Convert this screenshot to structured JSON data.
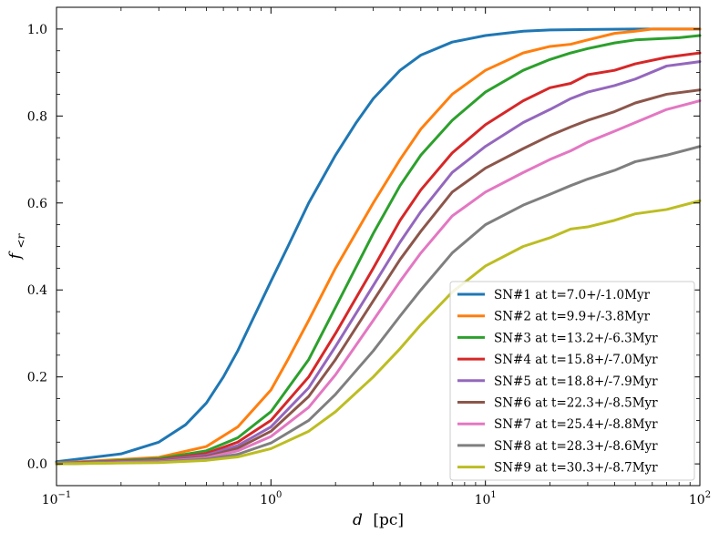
{
  "chart_data": {
    "type": "line",
    "title": "",
    "xlabel": "d [pc]",
    "xlabel_var": "d",
    "xlabel_unit": "[pc]",
    "ylabel": "f<r",
    "ylabel_var": "f",
    "ylabel_sub": "<r",
    "xscale": "log",
    "xlim": [
      0.1,
      100
    ],
    "ylim": [
      -0.05,
      1.05
    ],
    "grid": false,
    "legend_position": "lower-right",
    "x_ticks": [
      {
        "value": 0.1,
        "base": "10",
        "exp": "−1"
      },
      {
        "value": 1,
        "base": "10",
        "exp": "0"
      },
      {
        "value": 10,
        "base": "10",
        "exp": "1"
      },
      {
        "value": 100,
        "base": "10",
        "exp": "2"
      }
    ],
    "y_ticks": [
      "0.0",
      "0.2",
      "0.4",
      "0.6",
      "0.8",
      "1.0"
    ],
    "series": [
      {
        "name": "SN#1 at t=7.0+/-1.0Myr",
        "color": "#1f77b4",
        "x": [
          0.1,
          0.2,
          0.3,
          0.4,
          0.5,
          0.6,
          0.7,
          0.8,
          1.0,
          1.2,
          1.5,
          2,
          2.5,
          3,
          4,
          5,
          7,
          10,
          15,
          20,
          30,
          50,
          100
        ],
        "y": [
          0.005,
          0.023,
          0.05,
          0.09,
          0.14,
          0.2,
          0.26,
          0.32,
          0.42,
          0.5,
          0.6,
          0.71,
          0.785,
          0.84,
          0.905,
          0.94,
          0.97,
          0.985,
          0.995,
          0.998,
          0.999,
          1.0,
          1.0
        ]
      },
      {
        "name": "SN#2 at t=9.9+/-3.8Myr",
        "color": "#ff7f0e",
        "x": [
          0.1,
          0.3,
          0.5,
          0.7,
          1.0,
          1.2,
          1.5,
          2,
          3,
          4,
          5,
          7,
          10,
          15,
          20,
          25,
          30,
          40,
          50,
          60,
          100
        ],
        "y": [
          0.002,
          0.015,
          0.04,
          0.085,
          0.17,
          0.24,
          0.33,
          0.45,
          0.6,
          0.7,
          0.77,
          0.85,
          0.905,
          0.945,
          0.96,
          0.965,
          0.975,
          0.99,
          0.995,
          1.0,
          1.0
        ]
      },
      {
        "name": "SN#3 at t=13.2+/-6.3Myr",
        "color": "#2ca02c",
        "x": [
          0.1,
          0.3,
          0.5,
          0.7,
          1.0,
          1.5,
          2,
          3,
          4,
          5,
          7,
          10,
          15,
          20,
          25,
          30,
          40,
          50,
          80,
          100
        ],
        "y": [
          0.001,
          0.012,
          0.03,
          0.06,
          0.12,
          0.24,
          0.36,
          0.53,
          0.64,
          0.71,
          0.79,
          0.855,
          0.905,
          0.93,
          0.945,
          0.955,
          0.968,
          0.975,
          0.98,
          0.985
        ]
      },
      {
        "name": "SN#4 at t=15.8+/-7.0Myr",
        "color": "#d62728",
        "x": [
          0.1,
          0.3,
          0.5,
          0.7,
          1.0,
          1.5,
          2,
          3,
          4,
          5,
          7,
          10,
          15,
          20,
          25,
          30,
          40,
          50,
          70,
          100
        ],
        "y": [
          0.001,
          0.009,
          0.024,
          0.05,
          0.1,
          0.2,
          0.3,
          0.45,
          0.56,
          0.63,
          0.715,
          0.78,
          0.835,
          0.865,
          0.875,
          0.895,
          0.905,
          0.92,
          0.935,
          0.945
        ]
      },
      {
        "name": "SN#5 at t=18.8+/-7.9Myr",
        "color": "#9467bd",
        "x": [
          0.1,
          0.3,
          0.5,
          0.7,
          1.0,
          1.5,
          2,
          3,
          4,
          5,
          7,
          10,
          15,
          20,
          25,
          30,
          40,
          50,
          70,
          100
        ],
        "y": [
          0.001,
          0.008,
          0.02,
          0.042,
          0.085,
          0.175,
          0.27,
          0.41,
          0.51,
          0.58,
          0.67,
          0.73,
          0.785,
          0.815,
          0.84,
          0.855,
          0.87,
          0.885,
          0.915,
          0.925
        ]
      },
      {
        "name": "SN#6 at t=22.3+/-8.5Myr",
        "color": "#8c564b",
        "x": [
          0.1,
          0.3,
          0.5,
          0.7,
          1.0,
          1.5,
          2,
          3,
          4,
          5,
          7,
          10,
          15,
          20,
          25,
          30,
          40,
          50,
          70,
          100
        ],
        "y": [
          0.0,
          0.006,
          0.017,
          0.036,
          0.075,
          0.155,
          0.24,
          0.375,
          0.47,
          0.535,
          0.625,
          0.68,
          0.725,
          0.755,
          0.775,
          0.79,
          0.81,
          0.83,
          0.85,
          0.86
        ]
      },
      {
        "name": "SN#7 at t=25.4+/-8.8Myr",
        "color": "#e377c2",
        "x": [
          0.1,
          0.3,
          0.5,
          0.7,
          1.0,
          1.5,
          2,
          3,
          4,
          5,
          7,
          10,
          15,
          20,
          25,
          30,
          40,
          50,
          70,
          100
        ],
        "y": [
          0.0,
          0.005,
          0.014,
          0.03,
          0.063,
          0.13,
          0.205,
          0.33,
          0.42,
          0.485,
          0.57,
          0.625,
          0.67,
          0.7,
          0.72,
          0.74,
          0.765,
          0.785,
          0.815,
          0.835
        ]
      },
      {
        "name": "SN#8 at t=28.3+/-8.6Myr",
        "color": "#7f7f7f",
        "x": [
          0.1,
          0.3,
          0.5,
          0.7,
          1.0,
          1.5,
          2,
          3,
          4,
          5,
          7,
          10,
          15,
          20,
          25,
          30,
          40,
          50,
          70,
          100
        ],
        "y": [
          0.0,
          0.004,
          0.011,
          0.022,
          0.048,
          0.1,
          0.16,
          0.26,
          0.34,
          0.4,
          0.485,
          0.55,
          0.595,
          0.62,
          0.64,
          0.655,
          0.675,
          0.695,
          0.71,
          0.73
        ]
      },
      {
        "name": "SN#9 at t=30.3+/-8.7Myr",
        "color": "#bcbd22",
        "x": [
          0.1,
          0.3,
          0.5,
          0.7,
          1.0,
          1.5,
          2,
          3,
          4,
          5,
          7,
          10,
          15,
          20,
          25,
          30,
          40,
          50,
          70,
          100
        ],
        "y": [
          0.0,
          0.003,
          0.008,
          0.016,
          0.035,
          0.075,
          0.12,
          0.2,
          0.265,
          0.32,
          0.395,
          0.455,
          0.5,
          0.52,
          0.54,
          0.545,
          0.56,
          0.575,
          0.585,
          0.605
        ]
      }
    ]
  }
}
